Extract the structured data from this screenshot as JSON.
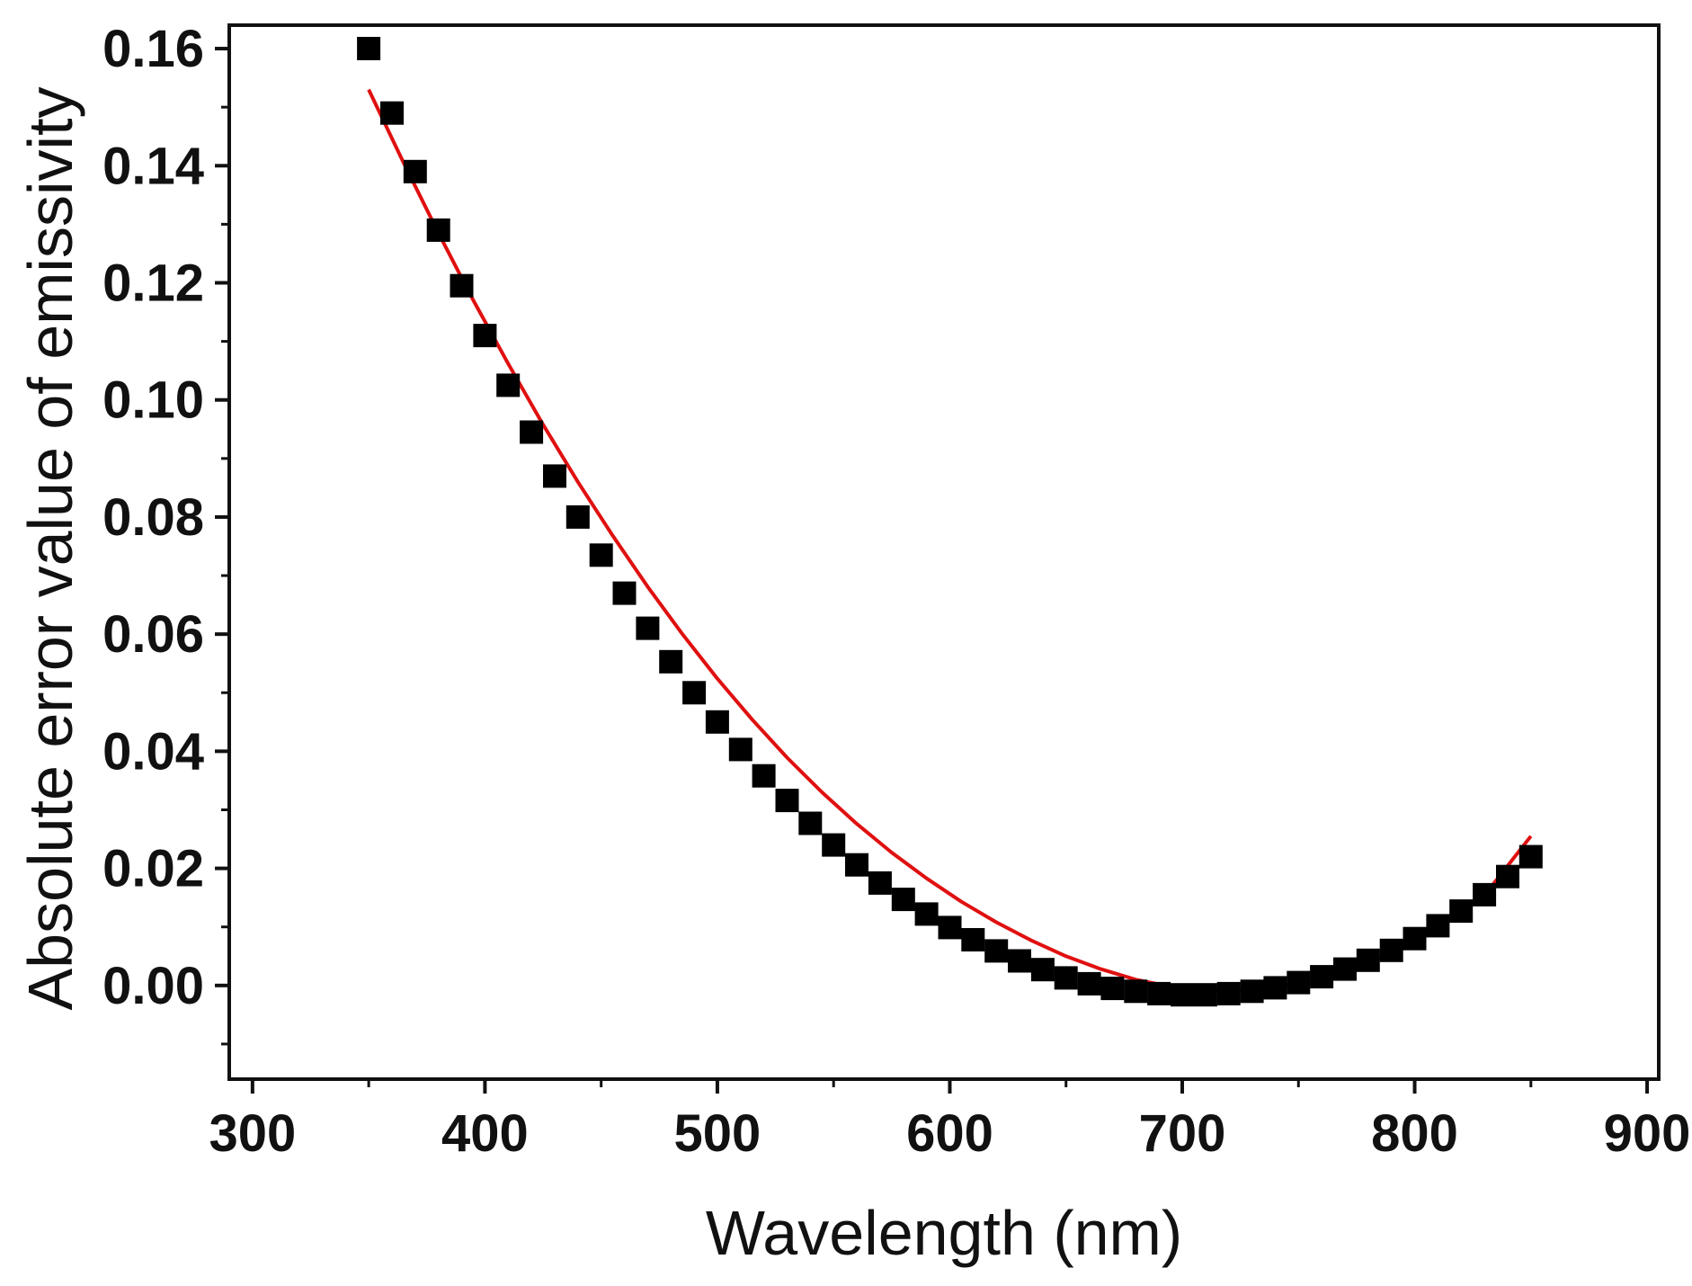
{
  "chart_data": {
    "type": "scatter",
    "title": "",
    "xlabel": "Wavelength (nm)",
    "ylabel": "Absolute error value of emissivity",
    "xlim": [
      290,
      905
    ],
    "ylim": [
      -0.016,
      0.164
    ],
    "grid": false,
    "legend": "none",
    "x_ticks": [
      300,
      400,
      500,
      600,
      700,
      800,
      900
    ],
    "x_tick_labels": [
      "300",
      "400",
      "500",
      "600",
      "700",
      "800",
      "900"
    ],
    "y_ticks": [
      0.0,
      0.02,
      0.04,
      0.06,
      0.08,
      0.1,
      0.12,
      0.14,
      0.16
    ],
    "y_tick_labels": [
      "0.00",
      "0.02",
      "0.04",
      "0.06",
      "0.08",
      "0.10",
      "0.12",
      "0.14",
      "0.16"
    ],
    "series": [
      {
        "name": "data",
        "kind": "markers",
        "marker": "square",
        "color": "#000000",
        "x": [
          350,
          360,
          370,
          380,
          390,
          400,
          410,
          420,
          430,
          440,
          450,
          460,
          470,
          480,
          490,
          500,
          510,
          520,
          530,
          540,
          550,
          560,
          570,
          580,
          590,
          600,
          610,
          620,
          630,
          640,
          650,
          660,
          670,
          680,
          690,
          700,
          710,
          720,
          730,
          740,
          750,
          760,
          770,
          780,
          790,
          800,
          810,
          820,
          830,
          840,
          850
        ],
        "y": [
          0.16,
          0.149,
          0.139,
          0.129,
          0.1195,
          0.111,
          0.1025,
          0.0945,
          0.087,
          0.08,
          0.0735,
          0.067,
          0.061,
          0.0553,
          0.05,
          0.045,
          0.0403,
          0.0358,
          0.0316,
          0.0277,
          0.024,
          0.0206,
          0.0175,
          0.0147,
          0.0122,
          0.0099,
          0.0078,
          0.0059,
          0.0042,
          0.0027,
          0.0013,
          0.0003,
          -0.0005,
          -0.001,
          -0.0014,
          -0.0016,
          -0.0016,
          -0.0014,
          -0.001,
          -0.0004,
          0.0005,
          0.0015,
          0.0028,
          0.0043,
          0.006,
          0.008,
          0.0102,
          0.0127,
          0.0155,
          0.0186,
          0.022
        ]
      },
      {
        "name": "fit",
        "kind": "line",
        "color": "#e01010",
        "x": [
          350,
          365,
          380,
          395,
          410,
          425,
          440,
          455,
          470,
          485,
          500,
          515,
          530,
          545,
          560,
          575,
          590,
          605,
          620,
          635,
          650,
          665,
          680,
          695,
          710,
          725,
          740,
          755,
          770,
          785,
          800,
          815,
          830,
          850
        ],
        "y": [
          0.153,
          0.1405,
          0.1285,
          0.117,
          0.1062,
          0.0958,
          0.086,
          0.0768,
          0.0681,
          0.06,
          0.0524,
          0.0454,
          0.0389,
          0.033,
          0.0276,
          0.0227,
          0.0183,
          0.0143,
          0.0108,
          0.0077,
          0.005,
          0.0028,
          0.001,
          -0.0002,
          -0.0008,
          -0.0008,
          -0.0003,
          0.0008,
          0.0025,
          0.0048,
          0.0077,
          0.0112,
          0.0154,
          0.0255
        ]
      }
    ]
  }
}
